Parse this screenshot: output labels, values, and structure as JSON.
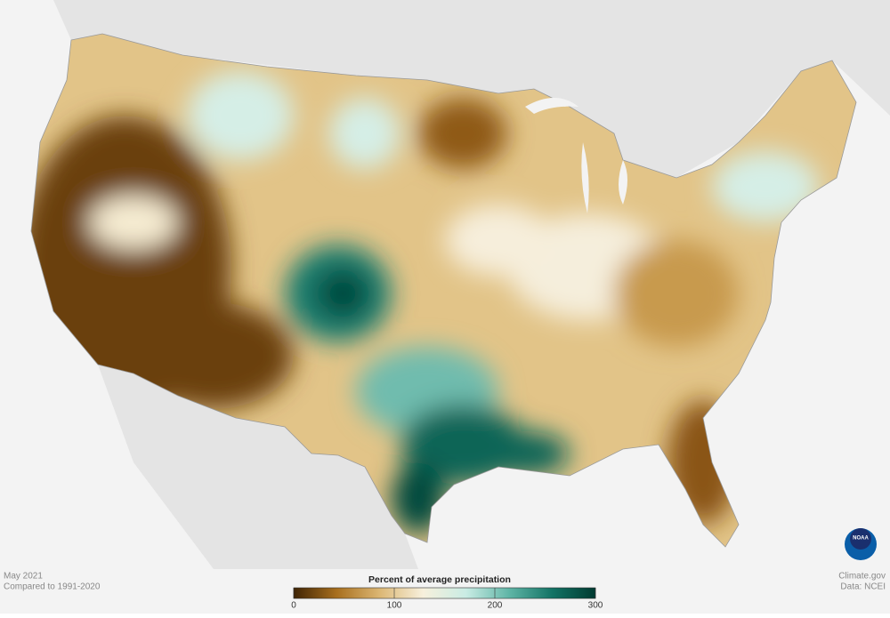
{
  "header": {
    "date": "May 2021",
    "baseline": "Compared to 1991-2020"
  },
  "credits": {
    "site": "Climate.gov",
    "source": "Data: NCEI",
    "logo": "NOAA"
  },
  "legend": {
    "title": "Percent of average precipitation",
    "min": 0,
    "max": 300,
    "ticks": [
      0,
      100,
      200,
      300
    ],
    "colors": [
      "#3f2405",
      "#a86f1e",
      "#dcb774",
      "#f7f0dc",
      "#c9ece4",
      "#5fb5a6",
      "#137365",
      "#003a30"
    ]
  }
}
